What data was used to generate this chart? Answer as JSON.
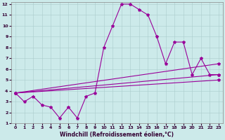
{
  "title": "",
  "xlabel": "Windchill (Refroidissement éolien,°C)",
  "bg_color": "#cceaea",
  "grid_color": "#aacccc",
  "line_color": "#990099",
  "xlim": [
    -0.5,
    23.5
  ],
  "ylim": [
    1,
    12.2
  ],
  "xticks": [
    0,
    1,
    2,
    3,
    4,
    5,
    6,
    7,
    8,
    9,
    10,
    11,
    12,
    13,
    14,
    15,
    16,
    17,
    18,
    19,
    20,
    21,
    22,
    23
  ],
  "yticks": [
    1,
    2,
    3,
    4,
    5,
    6,
    7,
    8,
    9,
    10,
    11,
    12
  ],
  "series1_x": [
    0,
    1,
    2,
    3,
    4,
    5,
    6,
    7,
    8,
    9,
    10,
    11,
    12,
    13,
    14,
    15,
    16,
    17,
    18,
    19,
    20,
    21,
    22,
    23
  ],
  "series1_y": [
    3.8,
    3.0,
    3.5,
    2.7,
    2.5,
    1.5,
    2.5,
    1.5,
    3.5,
    3.8,
    8.0,
    10.0,
    12.0,
    12.0,
    11.5,
    11.0,
    9.0,
    6.5,
    8.5,
    8.5,
    5.5,
    7.0,
    5.5,
    5.5
  ],
  "series2_x": [
    0,
    23
  ],
  "series2_y": [
    3.8,
    6.5
  ],
  "series3_x": [
    0,
    23
  ],
  "series3_y": [
    3.8,
    5.5
  ],
  "series4_x": [
    0,
    23
  ],
  "series4_y": [
    3.8,
    5.0
  ],
  "marker": "*",
  "markersize": 3,
  "linewidth": 0.8,
  "axis_fontsize": 5.5,
  "tick_fontsize": 4.5
}
